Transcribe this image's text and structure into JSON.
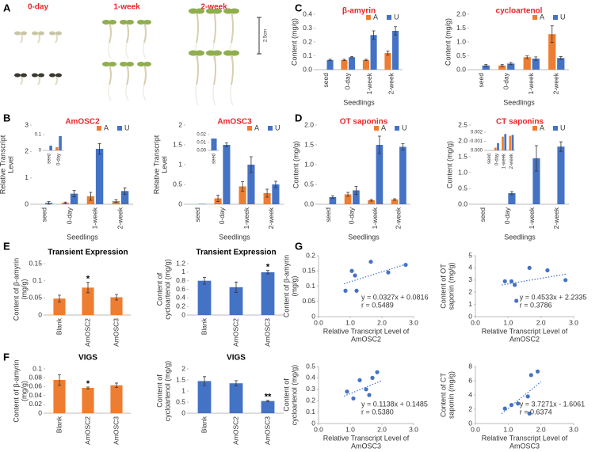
{
  "photos": {
    "panel": "A",
    "captions": [
      "0-day",
      "1-week",
      "2-week"
    ],
    "scale_bar": "2.5cm"
  },
  "chart_data": [
    {
      "type": "bar",
      "panel": "C",
      "title": "β-amyrin",
      "title_color": "#e8262a",
      "ylabel": [
        "Content (mg/g)"
      ],
      "xlabel": "Seedlings",
      "categories": [
        "seed",
        "0-day",
        "1-week",
        "2-week"
      ],
      "series": [
        {
          "name": "A",
          "color": "#ed7d31",
          "values": [
            null,
            0.07,
            0.07,
            0.12
          ],
          "errors": [
            null,
            0.005,
            0.005,
            0.015
          ]
        },
        {
          "name": "U",
          "color": "#4472c4",
          "values": [
            0.07,
            0.09,
            0.25,
            0.28
          ],
          "errors": [
            0.005,
            0.005,
            0.03,
            0.03
          ]
        }
      ],
      "ylim": [
        0,
        0.4
      ],
      "yticks": [
        {
          "value": 0,
          "label": "0.0"
        },
        0.1,
        0.2,
        0.3,
        0.4
      ]
    },
    {
      "type": "bar",
      "title": "cycloartenol",
      "title_color": "#e8262a",
      "ylabel": [
        "Content (mg/g)"
      ],
      "xlabel": "Seedlings",
      "categories": [
        "seed",
        "0-day",
        "1-week",
        "2-week"
      ],
      "series": [
        {
          "name": "A",
          "color": "#ed7d31",
          "values": [
            null,
            0.15,
            0.45,
            1.28
          ],
          "errors": [
            null,
            0.03,
            0.05,
            0.3
          ]
        },
        {
          "name": "U",
          "color": "#4472c4",
          "values": [
            0.15,
            0.22,
            0.4,
            0.42
          ],
          "errors": [
            0.03,
            0.04,
            0.06,
            0.05
          ]
        }
      ],
      "ylim": [
        0,
        2
      ],
      "yticks": [
        {
          "value": 0,
          "label": "0.0"
        },
        0.5,
        {
          "value": 1,
          "label": "1.0"
        },
        1.5,
        {
          "value": 2,
          "label": "2.0"
        }
      ]
    },
    {
      "type": "bar",
      "panel": "B",
      "title": "AmOSC2",
      "title_color": "#e8262a",
      "ylabel": [
        "Relative Transcript",
        "Level"
      ],
      "xlabel": "Seedlings",
      "categories": [
        "seed",
        "0-day",
        "1-week",
        "2-week"
      ],
      "series": [
        {
          "name": "A",
          "color": "#ed7d31",
          "values": [
            null,
            0.05,
            0.3,
            0.12
          ],
          "errors": [
            null,
            0.03,
            0.15,
            0.05
          ]
        },
        {
          "name": "U",
          "color": "#4472c4",
          "values": [
            0.05,
            0.4,
            2.1,
            0.5
          ],
          "errors": [
            0.05,
            0.12,
            0.2,
            0.12
          ]
        }
      ],
      "ylim": [
        0,
        3
      ],
      "yticks": [
        0,
        1,
        2,
        3
      ],
      "inset": {
        "categories": [
          "seed",
          "0-day"
        ],
        "series": [
          {
            "color": "#ed7d31",
            "values": [
              null,
              0.02
            ]
          },
          {
            "color": "#4472c4",
            "values": [
              0.03,
              0.09
            ]
          }
        ],
        "ylim": [
          0,
          0.1
        ],
        "yticks": [
          0,
          0.1
        ]
      }
    },
    {
      "type": "bar",
      "title": "AmOSC3",
      "title_color": "#e8262a",
      "ylabel": [
        "Relative Transcript",
        "Level"
      ],
      "xlabel": "Seedlings",
      "categories": [
        "seed",
        "0-day",
        "1-week",
        "2-week"
      ],
      "series": [
        {
          "name": "A",
          "color": "#ed7d31",
          "values": [
            null,
            0.15,
            0.45,
            0.28
          ],
          "errors": [
            null,
            0.08,
            0.12,
            0.1
          ]
        },
        {
          "name": "U",
          "color": "#4472c4",
          "values": [
            0.01,
            1.5,
            1.0,
            0.5
          ],
          "errors": [
            null,
            0.05,
            0.2,
            0.08
          ]
        }
      ],
      "ylim": [
        0,
        2
      ],
      "yticks": [
        0,
        0.5,
        1,
        1.5,
        2
      ],
      "inset": {
        "categories": [
          "seed"
        ],
        "series": [
          {
            "color": "#4472c4",
            "values": [
              0.015
            ]
          }
        ],
        "ylim": [
          0,
          0.02
        ],
        "yticks": [
          {
            "value": 0,
            "label": "0.00"
          },
          0.01,
          0.02
        ]
      }
    },
    {
      "type": "bar",
      "panel": "D",
      "title": "OT saponins",
      "title_color": "#e8262a",
      "ylabel": [
        "Content (mg/g)"
      ],
      "xlabel": "Seedlings",
      "categories": [
        "seed",
        "0-day",
        "1-week",
        "2-week"
      ],
      "series": [
        {
          "name": "A",
          "color": "#ed7d31",
          "values": [
            null,
            0.25,
            0.1,
            0.12
          ],
          "errors": [
            null,
            0.05,
            0.02,
            0.02
          ]
        },
        {
          "name": "U",
          "color": "#4472c4",
          "values": [
            0.18,
            0.35,
            1.5,
            1.45
          ],
          "errors": [
            0.03,
            0.1,
            0.22,
            0.08
          ]
        }
      ],
      "ylim": [
        0,
        2
      ],
      "yticks": [
        {
          "value": 0,
          "label": "0.0"
        },
        0.5,
        {
          "value": 1,
          "label": "1.0"
        },
        1.5,
        {
          "value": 2,
          "label": "2.0"
        }
      ]
    },
    {
      "type": "bar",
      "title": "CT saponins",
      "title_color": "#e8262a",
      "ylabel": [
        "Content (mg/g)"
      ],
      "xlabel": "Seedlings",
      "categories": [
        "seed",
        "0-day",
        "1-week",
        "2-week"
      ],
      "series": [
        {
          "name": "A",
          "color": "#ed7d31",
          "values": [
            null,
            null,
            null,
            null
          ],
          "errors": [
            null,
            null,
            null,
            null
          ]
        },
        {
          "name": "U",
          "color": "#4472c4",
          "values": [
            null,
            0.35,
            1.45,
            1.82
          ],
          "errors": [
            null,
            0.05,
            0.4,
            0.15
          ]
        }
      ],
      "ylim": [
        0,
        2.5
      ],
      "yticks": [
        {
          "value": 0,
          "label": "0.0"
        },
        0.5,
        {
          "value": 1,
          "label": "1.0"
        },
        1.5,
        {
          "value": 2,
          "label": "2.0"
        },
        2.5
      ],
      "inset": {
        "categories": [
          "seed",
          "0-day",
          "1-week",
          "2-week"
        ],
        "series": [
          {
            "color": "#ed7d31",
            "values": [
              null,
              0.0003,
              0.0015,
              0.0016
            ]
          },
          {
            "color": "#4472c4",
            "values": [
              null,
              0.0008,
              0.0018,
              0.0017
            ]
          }
        ],
        "ylim": [
          0,
          0.002
        ],
        "yticks": [
          {
            "value": 0,
            "label": "0.000"
          },
          0.001,
          0.002
        ]
      }
    },
    {
      "type": "bar",
      "panel": "E",
      "title": "Transient Expression",
      "ylabel": [
        "Content of β-amyrin",
        "(mg/g)"
      ],
      "categories": [
        "Blank",
        "AmOSC2",
        "AmOSC3"
      ],
      "values": [
        0.048,
        0.08,
        0.052
      ],
      "errors": [
        0.01,
        0.015,
        0.008
      ],
      "color": "#ed7d31",
      "annotations": [
        null,
        "*",
        null
      ],
      "ylim": [
        0,
        0.15
      ],
      "yticks": [
        0,
        0.05,
        0.1,
        0.15
      ]
    },
    {
      "type": "bar",
      "title": "Transient Expression",
      "ylabel": [
        "Content of",
        "cycloartenol (mg/g)"
      ],
      "categories": [
        "Blank",
        "AmOSC2",
        "AmOSC3"
      ],
      "values": [
        0.8,
        0.65,
        1.0
      ],
      "errors": [
        0.08,
        0.12,
        0.04
      ],
      "color": "#4472c4",
      "annotations": [
        null,
        null,
        "*"
      ],
      "ylim": [
        0,
        1.2
      ],
      "yticks": [
        0,
        0.2,
        0.4,
        0.6,
        0.8,
        1,
        1.2
      ]
    },
    {
      "type": "bar",
      "panel": "F",
      "title": "VIGS",
      "ylabel": [
        "Content of β-amyrin",
        "(mg/g)"
      ],
      "categories": [
        "Blank",
        "AmOSC2",
        "AmOSC3"
      ],
      "values": [
        0.075,
        0.057,
        0.063
      ],
      "errors": [
        0.012,
        0.002,
        0.005
      ],
      "color": "#ed7d31",
      "annotations": [
        null,
        "*",
        null
      ],
      "ylim": [
        0,
        0.1
      ],
      "yticks": [
        0,
        0.02,
        0.04,
        0.06,
        0.08,
        0.1
      ]
    },
    {
      "type": "bar",
      "title": "VIGS",
      "ylabel": [
        "Content of",
        "cycloartenol (mg/g)"
      ],
      "categories": [
        "Blank",
        "AmOSC2",
        "AmOSC3"
      ],
      "values": [
        1.45,
        1.35,
        0.55
      ],
      "errors": [
        0.2,
        0.12,
        0.03
      ],
      "color": "#4472c4",
      "annotations": [
        null,
        null,
        "**"
      ],
      "ylim": [
        0,
        2
      ],
      "yticks": [
        0,
        0.5,
        1,
        1.5,
        2
      ]
    },
    {
      "type": "scatter",
      "panel": "G",
      "ylabel": [
        "Content of β-amyrin",
        "(mg/g)"
      ],
      "xlabel": [
        "Relative Transcript Level of",
        "AmOSC2"
      ],
      "color": "#4472c4",
      "x": [
        0.85,
        1.05,
        1.15,
        1.2,
        1.65,
        2.2,
        2.75
      ],
      "y": [
        0.085,
        0.15,
        0.135,
        0.085,
        0.18,
        0.145,
        0.17
      ],
      "fit": {
        "slope": 0.0327,
        "intercept": 0.0816,
        "x": [
          0.8,
          2.8
        ]
      },
      "annotations": [
        "y = 0.0327x + 0.0816",
        "r = 0.5489"
      ],
      "xlim": [
        0,
        3
      ],
      "xticks": [
        {
          "value": 0,
          "label": "0.0"
        },
        {
          "value": 1,
          "label": "1.0"
        },
        {
          "value": 2,
          "label": "2.0"
        },
        {
          "value": 3,
          "label": "3.0"
        }
      ],
      "ylim": [
        0,
        0.2
      ],
      "yticks": [
        0,
        0.05,
        0.1,
        0.15,
        0.2
      ]
    },
    {
      "type": "scatter",
      "ylabel": [
        "Content of OT",
        "saponin (mg/g)"
      ],
      "xlabel": [
        "Relative Transcript Level of",
        "AmOSC2"
      ],
      "color": "#4472c4",
      "x": [
        0.9,
        1.1,
        1.2,
        1.25,
        1.65,
        2.2,
        2.75
      ],
      "y": [
        2.9,
        2.9,
        2.6,
        1.3,
        4.0,
        3.8,
        3.0
      ],
      "fit": {
        "slope": 0.4533,
        "intercept": 2.2335,
        "x": [
          0.8,
          2.8
        ]
      },
      "annotations": [
        "y = 0.4533x + 2.2335",
        "r = 0.3786"
      ],
      "xlim": [
        0,
        3
      ],
      "xticks": [
        {
          "value": 0,
          "label": "0.0"
        },
        {
          "value": 1,
          "label": "1.0"
        },
        {
          "value": 2,
          "label": "2.0"
        },
        {
          "value": 3,
          "label": "3.0"
        }
      ],
      "ylim": [
        0,
        5
      ],
      "yticks": [
        0,
        1,
        2,
        3,
        4,
        5
      ]
    },
    {
      "type": "scatter",
      "ylabel": [
        "Content of",
        "cycloartenol (mg/g)"
      ],
      "xlabel": [
        "Relative Transcript Level of",
        "AmOSC3"
      ],
      "color": "#4472c4",
      "x": [
        0.9,
        1.1,
        1.3,
        1.5,
        1.6,
        1.7,
        1.85
      ],
      "y": [
        0.28,
        0.22,
        0.38,
        0.3,
        0.25,
        0.4,
        0.45
      ],
      "fit": {
        "slope": 0.1138,
        "intercept": 0.1485,
        "x": [
          0.8,
          2.0
        ]
      },
      "annotations": [
        "y = 0.1138x + 0.1485",
        "r = 0.5380"
      ],
      "xlim": [
        0,
        3
      ],
      "xticks": [
        {
          "value": 0,
          "label": "0.0"
        },
        {
          "value": 1,
          "label": "1.0"
        },
        {
          "value": 2,
          "label": "2.0"
        },
        {
          "value": 3,
          "label": "3.0"
        }
      ],
      "ylim": [
        0,
        0.5
      ],
      "yticks": [
        0,
        0.1,
        0.2,
        0.3,
        0.4,
        0.5
      ]
    },
    {
      "type": "scatter",
      "ylabel": [
        "Content of CT",
        "saponin (mg/g)"
      ],
      "xlabel": [
        "Relative Transcript Level of",
        "AmOSC3"
      ],
      "color": "#4472c4",
      "x": [
        0.9,
        1.1,
        1.3,
        1.6,
        1.65,
        1.7,
        1.9
      ],
      "y": [
        2.1,
        2.6,
        2.8,
        3.8,
        1.4,
        6.8,
        7.3
      ],
      "fit": {
        "slope": 3.7271,
        "intercept": -1.6061,
        "x": [
          0.8,
          2.0
        ]
      },
      "annotations": [
        "y = 3.7271x - 1.6061",
        "r = 0.6374"
      ],
      "xlim": [
        0,
        3
      ],
      "xticks": [
        {
          "value": 0,
          "label": "0.0"
        },
        {
          "value": 1,
          "label": "1.0"
        },
        {
          "value": 2,
          "label": "2.0"
        },
        {
          "value": 3,
          "label": "3.0"
        }
      ],
      "ylim": [
        0,
        8
      ],
      "yticks": [
        0,
        2,
        4,
        6,
        8
      ]
    }
  ]
}
